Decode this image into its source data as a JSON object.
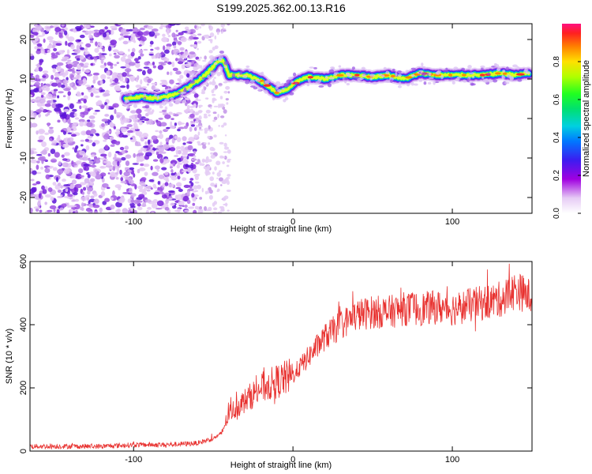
{
  "title": "S199.2025.362.00.13.R16",
  "chart_data": [
    {
      "type": "heatmap",
      "name": "spectrogram",
      "xlabel": "Height of straight line (km)",
      "ylabel": "Frequency (Hz)",
      "xlim": [
        -165,
        150
      ],
      "ylim": [
        -24,
        24
      ],
      "xticks": [
        -100,
        0,
        100
      ],
      "yticks": [
        -20,
        -10,
        0,
        10,
        20
      ],
      "ridge": {
        "x": [
          -105,
          -95,
          -85,
          -75,
          -65,
          -55,
          -48,
          -44,
          -40,
          -38,
          -30,
          -22,
          -15,
          -10,
          -5,
          0,
          5,
          10,
          20,
          30,
          40,
          50,
          60,
          70,
          80,
          90,
          100,
          110,
          120,
          130,
          140,
          148
        ],
        "freq": [
          5,
          5.5,
          5,
          6,
          8,
          11,
          14,
          15,
          11,
          11,
          11,
          10,
          8,
          6.5,
          7,
          8.5,
          10,
          10.5,
          10,
          11,
          11,
          10.5,
          11,
          10,
          11.5,
          11,
          11,
          11,
          11,
          11.5,
          11,
          11.5
        ]
      },
      "colorbar": {
        "label": "Normalized spectral amplitude",
        "range": [
          0.0,
          1.0
        ],
        "ticks": [
          "0.0",
          "0.2",
          "0.4",
          "0.6",
          "0.8"
        ]
      }
    },
    {
      "type": "line",
      "name": "snr",
      "xlabel": "Height of straight line (km)",
      "ylabel": "SNR (10 * v/v)",
      "xlim": [
        -165,
        150
      ],
      "ylim": [
        0,
        600
      ],
      "xticks": [
        -100,
        0,
        100
      ],
      "yticks": [
        0,
        200,
        400,
        600
      ],
      "color": "#e8312f",
      "series": [
        {
          "name": "SNR",
          "x": [
            -165,
            -140,
            -120,
            -100,
            -80,
            -60,
            -50,
            -45,
            -40,
            -35,
            -30,
            -20,
            -10,
            0,
            10,
            20,
            30,
            40,
            50,
            60,
            70,
            80,
            90,
            100,
            110,
            120,
            130,
            140,
            148
          ],
          "values": [
            15,
            15,
            15,
            20,
            20,
            25,
            40,
            55,
            120,
            140,
            160,
            200,
            220,
            240,
            300,
            360,
            400,
            430,
            440,
            440,
            450,
            450,
            455,
            450,
            460,
            470,
            480,
            510,
            490
          ]
        }
      ]
    }
  ]
}
